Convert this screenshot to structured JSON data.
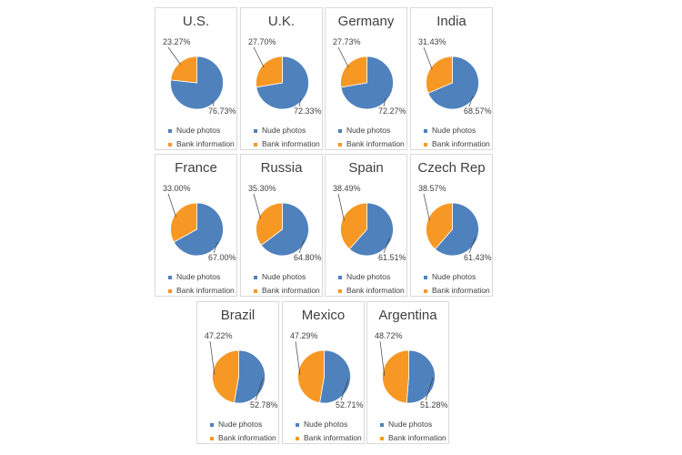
{
  "legend": {
    "nude_label": "Nude photos",
    "bank_label": "Bank information"
  },
  "colors": {
    "nude": "#4f81bd",
    "bank": "#f79824"
  },
  "chart_data": [
    {
      "type": "pie",
      "title": "U.S.",
      "categories": [
        "Nude photos",
        "Bank information"
      ],
      "values": [
        76.73,
        23.27
      ],
      "labels": [
        "76.73%",
        "23.27%"
      ]
    },
    {
      "type": "pie",
      "title": "U.K.",
      "categories": [
        "Nude photos",
        "Bank information"
      ],
      "values": [
        72.33,
        27.7
      ],
      "labels": [
        "72.33%",
        "27.70%"
      ]
    },
    {
      "type": "pie",
      "title": "Germany",
      "categories": [
        "Nude photos",
        "Bank information"
      ],
      "values": [
        72.27,
        27.73
      ],
      "labels": [
        "72.27%",
        "27.73%"
      ]
    },
    {
      "type": "pie",
      "title": "India",
      "categories": [
        "Nude photos",
        "Bank information"
      ],
      "values": [
        68.57,
        31.43
      ],
      "labels": [
        "68.57%",
        "31.43%"
      ]
    },
    {
      "type": "pie",
      "title": "France",
      "categories": [
        "Nude photos",
        "Bank information"
      ],
      "values": [
        67.0,
        33.0
      ],
      "labels": [
        "67.00%",
        "33.00%"
      ]
    },
    {
      "type": "pie",
      "title": "Russia",
      "categories": [
        "Nude photos",
        "Bank information"
      ],
      "values": [
        64.8,
        35.3
      ],
      "labels": [
        "64.80%",
        "35.30%"
      ]
    },
    {
      "type": "pie",
      "title": "Spain",
      "categories": [
        "Nude photos",
        "Bank information"
      ],
      "values": [
        61.51,
        38.49
      ],
      "labels": [
        "61.51%",
        "38.49%"
      ]
    },
    {
      "type": "pie",
      "title": "Czech Rep",
      "categories": [
        "Nude photos",
        "Bank information"
      ],
      "values": [
        61.43,
        38.57
      ],
      "labels": [
        "61.43%",
        "38.57%"
      ]
    },
    {
      "type": "pie",
      "title": "Brazil",
      "categories": [
        "Nude photos",
        "Bank information"
      ],
      "values": [
        52.78,
        47.22
      ],
      "labels": [
        "52.78%",
        "47.22%"
      ]
    },
    {
      "type": "pie",
      "title": "Mexico",
      "categories": [
        "Nude photos",
        "Bank information"
      ],
      "values": [
        52.71,
        47.29
      ],
      "labels": [
        "52.71%",
        "47.29%"
      ]
    },
    {
      "type": "pie",
      "title": "Argentina",
      "categories": [
        "Nude photos",
        "Bank information"
      ],
      "values": [
        51.28,
        48.72
      ],
      "labels": [
        "51.28%",
        "48.72%"
      ]
    }
  ]
}
